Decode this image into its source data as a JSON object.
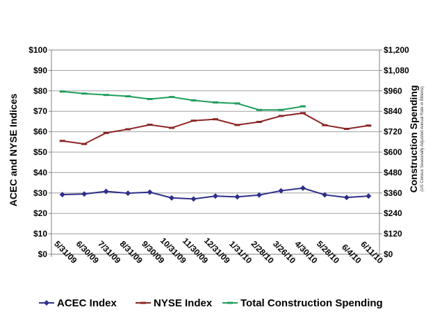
{
  "chart_data": {
    "type": "line",
    "categories": [
      "5/31/09",
      "6/30/09",
      "7/31/09",
      "8/31/09",
      "9/30/09",
      "10/31/09",
      "11/30/09",
      "12/31/09",
      "1/31/10",
      "2/28/10",
      "3/26/10",
      "4/30/10",
      "5/28/10",
      "6/4/10",
      "6/11/10"
    ],
    "ylabel": "ACEC and NYSE Indices",
    "y2label": "Construction Spending",
    "y2note": "(US Census Seasonally Adjusted Annual Rate in Billions)",
    "ylim": [
      0,
      100
    ],
    "y2lim": [
      0,
      1200
    ],
    "yticks": [
      "$0",
      "$10",
      "$20",
      "$30",
      "$40",
      "$50",
      "$60",
      "$70",
      "$80",
      "$90",
      "$100"
    ],
    "y2ticks": [
      "$0",
      "$120",
      "$240",
      "$360",
      "$480",
      "$600",
      "$720",
      "$840",
      "$960",
      "$1,080",
      "$1,200"
    ],
    "grid": true,
    "legend_position": "bottom",
    "series": [
      {
        "name": "ACEC Index",
        "axis": "left",
        "color": "#2e2e8a",
        "marker": "diamond",
        "values": [
          29.2,
          29.5,
          30.8,
          29.9,
          30.4,
          27.6,
          27.1,
          28.5,
          28.1,
          29.0,
          31.1,
          32.4,
          29.1,
          27.8,
          28.5
        ]
      },
      {
        "name": "NYSE Index",
        "axis": "left",
        "color": "#8b2323",
        "marker": "dash",
        "values": [
          55.5,
          54.0,
          59.4,
          61.2,
          63.4,
          61.9,
          65.4,
          66.1,
          63.3,
          64.8,
          67.7,
          69.1,
          63.2,
          61.4,
          63.0
        ]
      },
      {
        "name": "Total Construction Spending",
        "axis": "right",
        "color": "#1e9e5a",
        "marker": "dash",
        "values": [
          956,
          944,
          936,
          928,
          912,
          924,
          904,
          892,
          886,
          848,
          848,
          869,
          null,
          null,
          null
        ]
      }
    ]
  }
}
